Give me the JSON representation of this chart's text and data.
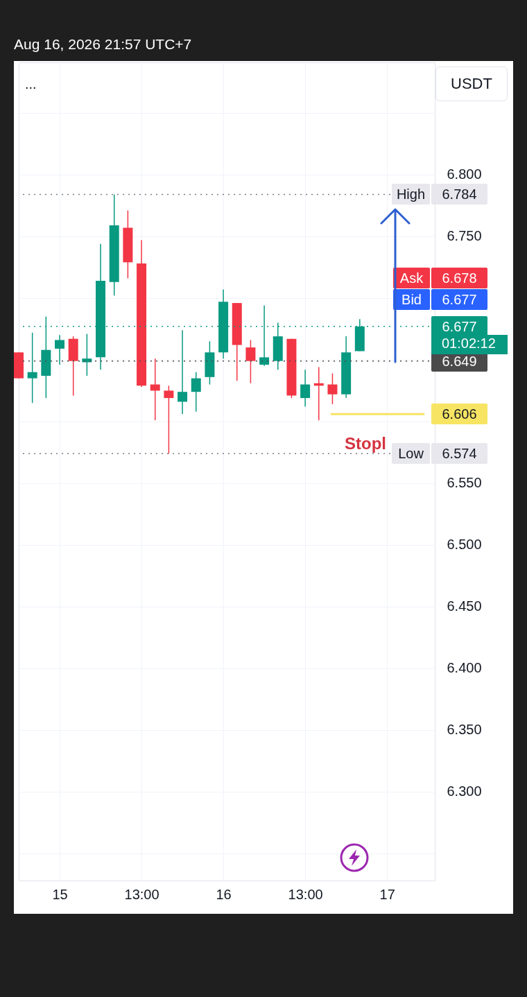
{
  "chart_data": {
    "type": "candlestick",
    "subtitle": "Aug 16, 2026 21:57 UTC+7",
    "x": [
      "2026-08-14T19:00",
      "2026-08-14T21:00",
      "2026-08-14T23:00",
      "2026-08-15T01:00",
      "2026-08-15T03:00",
      "2026-08-15T05:00",
      "2026-08-15T07:00",
      "2026-08-15T09:00",
      "2026-08-15T11:00",
      "2026-08-15T13:00",
      "2026-08-15T15:00",
      "2026-08-15T17:00",
      "2026-08-15T19:00",
      "2026-08-15T21:00",
      "2026-08-15T23:00",
      "2026-08-16T01:00",
      "2026-08-16T03:00",
      "2026-08-16T05:00",
      "2026-08-16T07:00",
      "2026-08-16T09:00",
      "2026-08-16T11:00",
      "2026-08-16T13:00",
      "2026-08-16T15:00",
      "2026-08-16T17:00",
      "2026-08-16T19:00",
      "2026-08-16T21:00"
    ],
    "ohlc": [
      [
        6.656,
        6.656,
        6.635,
        6.635
      ],
      [
        6.635,
        6.672,
        6.615,
        6.64
      ],
      [
        6.637,
        6.685,
        6.619,
        6.658
      ],
      [
        6.659,
        6.67,
        6.646,
        6.666
      ],
      [
        6.667,
        6.669,
        6.621,
        6.649
      ],
      [
        6.648,
        6.671,
        6.637,
        6.651
      ],
      [
        6.652,
        6.744,
        6.642,
        6.714
      ],
      [
        6.713,
        6.784,
        6.702,
        6.759
      ],
      [
        6.757,
        6.771,
        6.716,
        6.729
      ],
      [
        6.728,
        6.747,
        6.628,
        6.629
      ],
      [
        6.63,
        6.651,
        6.601,
        6.625
      ],
      [
        6.625,
        6.629,
        6.574,
        6.619
      ],
      [
        6.616,
        6.674,
        6.606,
        6.624
      ],
      [
        6.624,
        6.64,
        6.608,
        6.635
      ],
      [
        6.636,
        6.665,
        6.63,
        6.656
      ],
      [
        6.656,
        6.707,
        6.651,
        6.697
      ],
      [
        6.696,
        6.696,
        6.633,
        6.662
      ],
      [
        6.66,
        6.666,
        6.631,
        6.649
      ],
      [
        6.646,
        6.694,
        6.645,
        6.652
      ],
      [
        6.649,
        6.68,
        6.642,
        6.669
      ],
      [
        6.667,
        6.667,
        6.619,
        6.621
      ],
      [
        6.619,
        6.642,
        6.612,
        6.63
      ],
      [
        6.631,
        6.644,
        6.601,
        6.629
      ],
      [
        6.63,
        6.639,
        6.614,
        6.622
      ],
      [
        6.622,
        6.669,
        6.619,
        6.656
      ],
      [
        6.657,
        6.683,
        6.657,
        6.677
      ]
    ],
    "colors": [
      "#f23645",
      "#089981",
      "#089981",
      "#089981",
      "#f23645",
      "#089981",
      "#089981",
      "#089981",
      "#f23645",
      "#f23645",
      "#f23645",
      "#f23645",
      "#089981",
      "#089981",
      "#089981",
      "#089981",
      "#f23645",
      "#f23645",
      "#089981",
      "#089981",
      "#f23645",
      "#089981",
      "#f23645",
      "#f23645",
      "#089981",
      "#089981"
    ],
    "series": [
      {
        "type": "line",
        "x": [
          "2026-08-16T16:45",
          "2026-08-17T06:30"
        ],
        "values": [
          6.606,
          6.606
        ],
        "color": "#f7e463",
        "value_labels": [
          null,
          "6.606"
        ]
      }
    ],
    "xlim": [
      "2026-08-14T19:00",
      "2026-08-17T08:00"
    ],
    "xticks": [
      {
        "value": "2026-08-15T01:00",
        "label": "15"
      },
      {
        "value": "2026-08-15T13:00",
        "label": "13:00"
      },
      {
        "value": "2026-08-16T01:00",
        "label": "16"
      },
      {
        "value": "2026-08-16T13:00",
        "label": "13:00"
      },
      {
        "value": "2026-08-17T01:00",
        "label": "17"
      }
    ],
    "ylim": [
      6.228,
      6.891
    ],
    "yticks": [
      {
        "value": 6.25,
        "label": null
      },
      {
        "value": 6.3,
        "label": "6.300"
      },
      {
        "value": 6.35,
        "label": "6.350"
      },
      {
        "value": 6.4,
        "label": "6.400"
      },
      {
        "value": 6.45,
        "label": "6.450"
      },
      {
        "value": 6.5,
        "label": "6.500"
      },
      {
        "value": 6.55,
        "label": "6.550"
      },
      {
        "value": 6.6,
        "label": null
      },
      {
        "value": 6.65,
        "label": null
      },
      {
        "value": 6.7,
        "label": null
      },
      {
        "value": 6.75,
        "label": "6.750"
      },
      {
        "value": 6.8,
        "label": "6.800"
      },
      {
        "value": 6.85,
        "label": null
      }
    ],
    "grid": true,
    "ref_lines": [
      {
        "axis": "y",
        "value": 6.784,
        "label": "6.784",
        "color": "#787b86",
        "line_style": "dotted"
      },
      {
        "axis": "y",
        "value": 6.574,
        "label": "6.574",
        "color": "#787b86",
        "line_style": "dotted"
      },
      {
        "axis": "y",
        "value": 6.677,
        "label": "6.677",
        "color": "#089981",
        "line_style": "dotted"
      },
      {
        "axis": "y",
        "value": 6.649,
        "label": "6.649",
        "color": "#4a4a4a",
        "line_style": "dotted"
      }
    ],
    "annotations": [
      "...",
      "USDT",
      "01:02:12",
      "Stopl",
      {
        "text": "High",
        "y": 6.784
      },
      {
        "text": "Low",
        "y": 6.574
      },
      "Ask",
      "6.678",
      "Bid",
      "6.677"
    ]
  }
}
